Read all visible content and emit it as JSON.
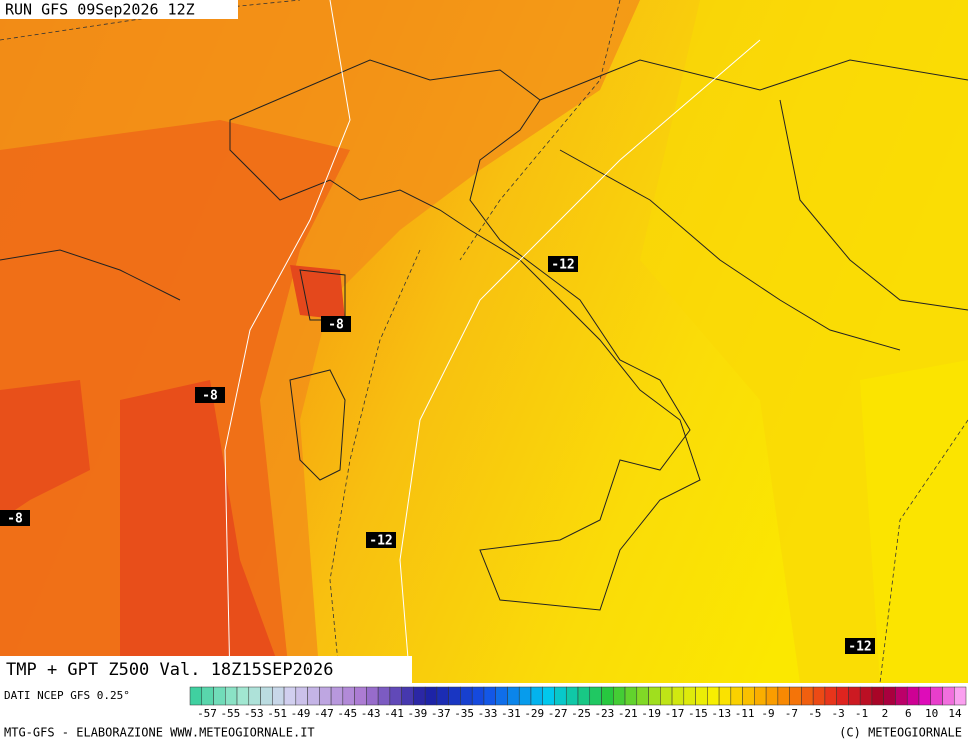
{
  "header": {
    "run": "RUN GFS 09Sep2026 12Z"
  },
  "map": {
    "title": "TMP + GPT Z500 Val. 18Z15SEP2026",
    "contour_labels": [
      "-12",
      "-8",
      "-8",
      "-8",
      "-12",
      "-12"
    ]
  },
  "legend": {
    "source": "DATI NCEP GFS 0.25°",
    "labels": [
      "-57",
      "-55",
      "-53",
      "-51",
      "-49",
      "-47",
      "-45",
      "-43",
      "-41",
      "-39",
      "-37",
      "-35",
      "-33",
      "-31",
      "-29",
      "-27",
      "-25",
      "-23",
      "-21",
      "-19",
      "-17",
      "-15",
      "-13",
      "-11",
      "-9",
      "-7",
      "-5",
      "-3",
      "-1",
      "2",
      "6",
      "10",
      "14"
    ]
  },
  "footer": {
    "left": "MTG-GFS - ELABORAZIONE WWW.METEOGIORNALE.IT",
    "right": "(C) METEOGIORNALE"
  }
}
